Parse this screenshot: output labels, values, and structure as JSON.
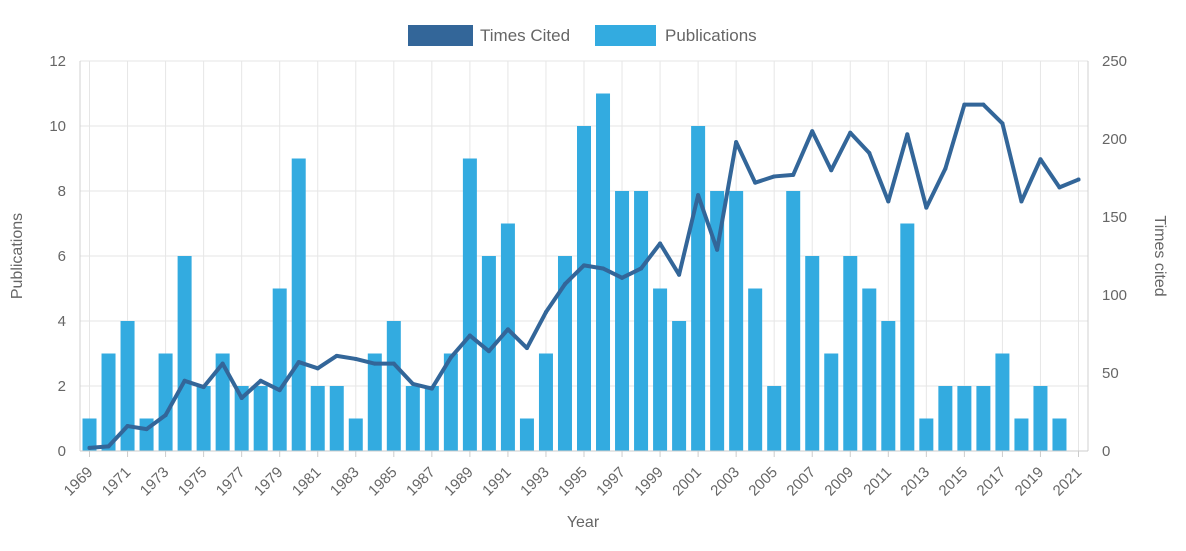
{
  "chart_data": {
    "type": "bar",
    "xlabel": "Year",
    "ylabel_left": "Publications",
    "ylabel_right": "Times cited",
    "ylim_left": [
      0,
      12
    ],
    "ylim_right": [
      0,
      250
    ],
    "y_ticks_left": [
      "0",
      "2",
      "4",
      "6",
      "8",
      "10",
      "12"
    ],
    "y_ticks_right": [
      "0",
      "50",
      "100",
      "150",
      "200",
      "250"
    ],
    "grid": true,
    "legend_position": "top-center",
    "categories": [
      "1969",
      "1970",
      "1971",
      "1972",
      "1973",
      "1974",
      "1975",
      "1976",
      "1977",
      "1978",
      "1979",
      "1980",
      "1981",
      "1982",
      "1983",
      "1984",
      "1985",
      "1986",
      "1987",
      "1988",
      "1989",
      "1990",
      "1991",
      "1992",
      "1993",
      "1994",
      "1995",
      "1996",
      "1997",
      "1998",
      "1999",
      "2000",
      "2001",
      "2002",
      "2003",
      "2004",
      "2005",
      "2006",
      "2007",
      "2008",
      "2009",
      "2010",
      "2011",
      "2012",
      "2013",
      "2014",
      "2015",
      "2016",
      "2017",
      "2018",
      "2019",
      "2020",
      "2021"
    ],
    "x_tick_labels": [
      "1969",
      "1971",
      "1973",
      "1975",
      "1977",
      "1979",
      "1981",
      "1983",
      "1985",
      "1987",
      "1989",
      "1991",
      "1993",
      "1995",
      "1997",
      "1999",
      "2001",
      "2003",
      "2005",
      "2007",
      "2009",
      "2011",
      "2013",
      "2015",
      "2017",
      "2019",
      "2021"
    ],
    "series": [
      {
        "name": "Times Cited",
        "type": "line",
        "axis": "right",
        "color": "#336699",
        "values": [
          2,
          3,
          16,
          14,
          23,
          45,
          41,
          56,
          34,
          45,
          39,
          57,
          53,
          61,
          59,
          56,
          56,
          43,
          40,
          60,
          74,
          64,
          78,
          66,
          89,
          107,
          119,
          117,
          111,
          117,
          133,
          113,
          164,
          129,
          198,
          172,
          176,
          177,
          205,
          180,
          204,
          191,
          160,
          203,
          156,
          181,
          222,
          222,
          210,
          160,
          187,
          169,
          174
        ]
      },
      {
        "name": "Publications",
        "type": "bar",
        "axis": "left",
        "color": "#33abe0",
        "values": [
          1,
          3,
          4,
          1,
          3,
          6,
          2,
          3,
          2,
          2,
          5,
          9,
          2,
          2,
          1,
          3,
          4,
          2,
          2,
          3,
          9,
          6,
          7,
          1,
          3,
          6,
          10,
          11,
          8,
          8,
          5,
          4,
          10,
          8,
          8,
          5,
          2,
          8,
          6,
          3,
          6,
          5,
          4,
          7,
          1,
          2,
          2,
          2,
          3,
          1,
          2,
          1,
          0
        ]
      }
    ]
  }
}
